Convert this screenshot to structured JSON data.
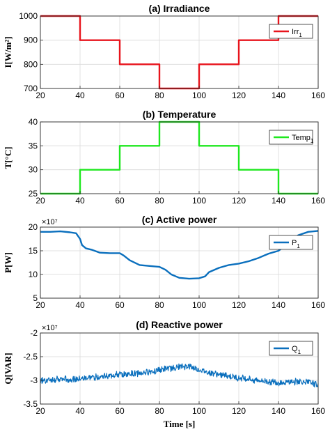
{
  "colors": {
    "red": "#e8141c",
    "green": "#1fe81f",
    "blue": "#0a6fbd",
    "grid": "#d9d9d9",
    "axis": "#262626"
  },
  "chart_data": [
    {
      "type": "line",
      "title": "(a) Irradiance",
      "ylabel": "I[W/m²]",
      "xlabel": "",
      "xlim": [
        20,
        160
      ],
      "ylim": [
        700,
        1000
      ],
      "xticks": [
        "20",
        "40",
        "60",
        "80",
        "100",
        "120",
        "140",
        "160"
      ],
      "yticks": [
        "700",
        "800",
        "900",
        "1000"
      ],
      "grid": true,
      "legend": "top-right",
      "series": [
        {
          "name": "Irr1",
          "color": "red",
          "x": [
            20,
            40,
            40,
            60,
            60,
            80,
            80,
            100,
            100,
            120,
            120,
            140,
            140,
            160
          ],
          "y": [
            1000,
            1000,
            900,
            900,
            800,
            800,
            700,
            700,
            800,
            800,
            900,
            900,
            1000,
            1000
          ]
        }
      ]
    },
    {
      "type": "line",
      "title": "(b) Temperature",
      "ylabel": "T[°C]",
      "xlabel": "",
      "xlim": [
        20,
        160
      ],
      "ylim": [
        25,
        40
      ],
      "xticks": [
        "20",
        "40",
        "60",
        "80",
        "100",
        "120",
        "140",
        "160"
      ],
      "yticks": [
        "25",
        "30",
        "35",
        "40"
      ],
      "grid": true,
      "legend": "top-right",
      "series": [
        {
          "name": "Temp1",
          "color": "green",
          "x": [
            20,
            40,
            40,
            60,
            60,
            80,
            80,
            100,
            100,
            120,
            120,
            140,
            140,
            160
          ],
          "y": [
            25,
            25,
            30,
            30,
            35,
            35,
            40,
            40,
            35,
            35,
            30,
            30,
            25,
            25
          ]
        }
      ]
    },
    {
      "type": "line",
      "title": "(c)  Active power",
      "ylabel": "P[W]",
      "xlabel": "",
      "multiplier": "×10⁷",
      "xlim": [
        20,
        160
      ],
      "ylim": [
        5,
        20
      ],
      "xticks": [
        "20",
        "40",
        "60",
        "80",
        "100",
        "120",
        "140",
        "160"
      ],
      "yticks": [
        "5",
        "10",
        "15",
        "20"
      ],
      "grid": true,
      "legend": "top-right",
      "series": [
        {
          "name": "P1",
          "color": "blue",
          "x": [
            20,
            25,
            30,
            35,
            38,
            40,
            41,
            43,
            46,
            50,
            55,
            60,
            62,
            65,
            70,
            75,
            80,
            83,
            86,
            90,
            95,
            100,
            103,
            105,
            110,
            115,
            120,
            125,
            130,
            135,
            140,
            143,
            146,
            150,
            155,
            160
          ],
          "y": [
            19,
            19,
            19.1,
            18.9,
            18.7,
            17.5,
            16.2,
            15.5,
            15.2,
            14.6,
            14.5,
            14.5,
            14,
            13,
            12,
            11.8,
            11.6,
            11,
            10,
            9.3,
            9.1,
            9.2,
            9.6,
            10.5,
            11.4,
            12,
            12.3,
            12.8,
            13.5,
            14.4,
            15,
            16,
            17.2,
            18.3,
            19,
            19.2
          ]
        }
      ]
    },
    {
      "type": "line",
      "title": "(d) Reactive power",
      "ylabel": "Q[VAR]",
      "xlabel": "Time [s]",
      "multiplier": "×10⁷",
      "xlim": [
        20,
        160
      ],
      "ylim": [
        -3.5,
        -2
      ],
      "xticks": [
        "20",
        "40",
        "60",
        "80",
        "100",
        "120",
        "140",
        "160"
      ],
      "yticks": [
        "-3.5",
        "-3",
        "-2.5",
        "-2"
      ],
      "grid": true,
      "legend": "top-right",
      "series": [
        {
          "name": "Q1",
          "color": "blue",
          "noise": 0.06,
          "x": [
            20,
            30,
            40,
            50,
            60,
            70,
            80,
            90,
            95,
            100,
            110,
            120,
            130,
            140,
            150,
            160
          ],
          "y": [
            -3.0,
            -2.98,
            -2.97,
            -2.92,
            -2.88,
            -2.85,
            -2.78,
            -2.72,
            -2.7,
            -2.78,
            -2.88,
            -2.95,
            -3.0,
            -3.05,
            -3.02,
            -3.08
          ]
        }
      ]
    }
  ]
}
